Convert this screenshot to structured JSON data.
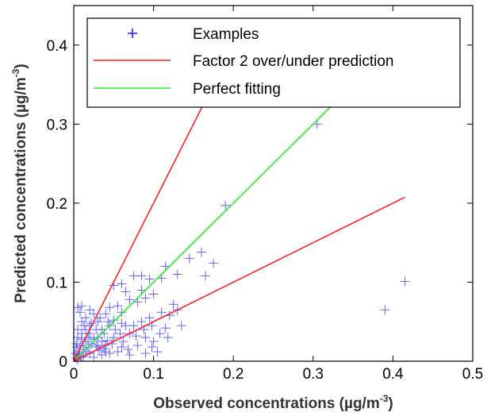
{
  "chart_data": {
    "type": "scatter",
    "xlabel": "Observed concentrations (µg/m",
    "xlabel_sup": "-3",
    "xlabel_end": ")",
    "ylabel": "Predicted concentrations (µg/m",
    "ylabel_sup": "-3",
    "ylabel_end": ")",
    "xlim": [
      0,
      0.5
    ],
    "ylim": [
      0,
      0.45
    ],
    "x_ticks": [
      0,
      0.1,
      0.2,
      0.3,
      0.4,
      0.5
    ],
    "x_tick_labels": [
      "0",
      "0.1",
      "0.2",
      "0.3",
      "0.4",
      "0.5"
    ],
    "y_ticks": [
      0,
      0.1,
      0.2,
      0.3,
      0.4
    ],
    "y_tick_labels": [
      "0",
      "0.1",
      "0.2",
      "0.3",
      "0.4"
    ],
    "grid": false,
    "legend_position": "top",
    "colors": {
      "examples": "#3a3aff",
      "factor2": "#ff2020",
      "perfect": "#22ee22"
    },
    "legend": [
      {
        "key": "examples",
        "label": "Examples",
        "marker": "plus"
      },
      {
        "key": "factor2",
        "label": "Factor 2 over/under prediction",
        "marker": "line"
      },
      {
        "key": "perfect",
        "label": "Perfect fitting",
        "marker": "line"
      }
    ],
    "lines": [
      {
        "key": "perfect",
        "x": [
          0,
          0.33
        ],
        "y": [
          0,
          0.33
        ]
      },
      {
        "key": "factor2",
        "x": [
          0,
          0.165
        ],
        "y": [
          0,
          0.33
        ]
      },
      {
        "key": "factor2",
        "x": [
          0,
          0.415
        ],
        "y": [
          0,
          0.2075
        ]
      }
    ],
    "series": [
      {
        "key": "examples",
        "points": [
          [
            0.305,
            0.3
          ],
          [
            0.19,
            0.197
          ],
          [
            0.415,
            0.101
          ],
          [
            0.39,
            0.065
          ],
          [
            0.16,
            0.138
          ],
          [
            0.145,
            0.13
          ],
          [
            0.175,
            0.124
          ],
          [
            0.165,
            0.108
          ],
          [
            0.13,
            0.11
          ],
          [
            0.115,
            0.12
          ],
          [
            0.11,
            0.105
          ],
          [
            0.085,
            0.108
          ],
          [
            0.095,
            0.104
          ],
          [
            0.075,
            0.108
          ],
          [
            0.06,
            0.098
          ],
          [
            0.05,
            0.096
          ],
          [
            0.1,
            0.085
          ],
          [
            0.085,
            0.09
          ],
          [
            0.09,
            0.08
          ],
          [
            0.08,
            0.075
          ],
          [
            0.07,
            0.078
          ],
          [
            0.065,
            0.088
          ],
          [
            0.125,
            0.072
          ],
          [
            0.13,
            0.065
          ],
          [
            0.11,
            0.062
          ],
          [
            0.12,
            0.058
          ],
          [
            0.095,
            0.055
          ],
          [
            0.085,
            0.05
          ],
          [
            0.06,
            0.062
          ],
          [
            0.055,
            0.07
          ],
          [
            0.045,
            0.068
          ],
          [
            0.04,
            0.06
          ],
          [
            0.05,
            0.052
          ],
          [
            0.06,
            0.048
          ],
          [
            0.075,
            0.045
          ],
          [
            0.07,
            0.035
          ],
          [
            0.09,
            0.03
          ],
          [
            0.1,
            0.025
          ],
          [
            0.08,
            0.02
          ],
          [
            0.06,
            0.018
          ],
          [
            0.105,
            0.012
          ],
          [
            0.09,
            0.01
          ],
          [
            0.07,
            0.008
          ],
          [
            0.055,
            0.012
          ],
          [
            0.045,
            0.01
          ],
          [
            0.04,
            0.02
          ],
          [
            0.05,
            0.03
          ],
          [
            0.035,
            0.04
          ],
          [
            0.03,
            0.05
          ],
          [
            0.025,
            0.06
          ],
          [
            0.02,
            0.065
          ],
          [
            0.015,
            0.055
          ],
          [
            0.01,
            0.07
          ],
          [
            0.005,
            0.068
          ],
          [
            0.01,
            0.05
          ],
          [
            0.02,
            0.045
          ],
          [
            0.03,
            0.03
          ],
          [
            0.025,
            0.028
          ],
          [
            0.035,
            0.025
          ],
          [
            0.04,
            0.012
          ],
          [
            0.015,
            0.04
          ],
          [
            0.01,
            0.035
          ],
          [
            0.005,
            0.04
          ],
          [
            0.02,
            0.035
          ],
          [
            0.03,
            0.018
          ],
          [
            0.035,
            0.008
          ],
          [
            0.025,
            0.005
          ],
          [
            0.02,
            0.01
          ],
          [
            0.015,
            0.025
          ],
          [
            0.01,
            0.028
          ],
          [
            0.005,
            0.03
          ],
          [
            0.008,
            0.02
          ],
          [
            0.012,
            0.015
          ],
          [
            0.006,
            0.012
          ],
          [
            0.004,
            0.018
          ],
          [
            0.003,
            0.022
          ],
          [
            0.007,
            0.008
          ],
          [
            0.009,
            0.005
          ],
          [
            0.002,
            0.01
          ],
          [
            0.003,
            0.004
          ],
          [
            0.005,
            0.002
          ],
          [
            0.012,
            0.006
          ],
          [
            0.015,
            0.012
          ],
          [
            0.018,
            0.018
          ],
          [
            0.022,
            0.022
          ],
          [
            0.028,
            0.02
          ],
          [
            0.032,
            0.014
          ],
          [
            0.038,
            0.016
          ],
          [
            0.042,
            0.026
          ],
          [
            0.048,
            0.022
          ],
          [
            0.052,
            0.04
          ],
          [
            0.058,
            0.035
          ],
          [
            0.065,
            0.045
          ],
          [
            0.045,
            0.045
          ],
          [
            0.038,
            0.035
          ],
          [
            0.028,
            0.04
          ],
          [
            0.022,
            0.048
          ],
          [
            0.018,
            0.03
          ],
          [
            0.013,
            0.045
          ],
          [
            0.008,
            0.062
          ],
          [
            0.033,
            0.055
          ],
          [
            0.043,
            0.05
          ],
          [
            0.062,
            0.025
          ],
          [
            0.068,
            0.015
          ],
          [
            0.078,
            0.032
          ],
          [
            0.088,
            0.04
          ],
          [
            0.098,
            0.045
          ],
          [
            0.115,
            0.042
          ],
          [
            0.135,
            0.045
          ],
          [
            0.118,
            0.03
          ],
          [
            0.108,
            0.035
          ],
          [
            0.098,
            0.018
          ]
        ]
      }
    ]
  }
}
